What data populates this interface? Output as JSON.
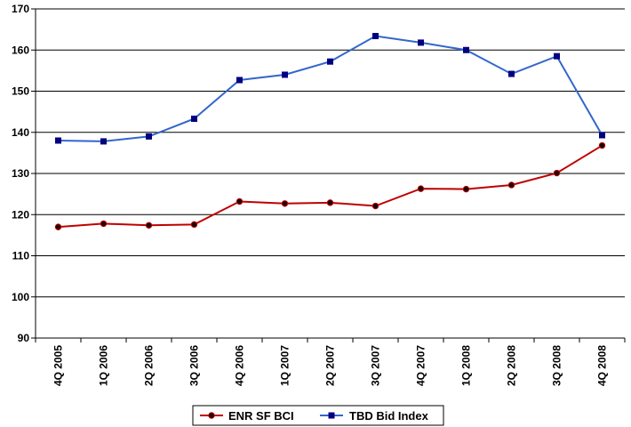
{
  "chart_data": {
    "type": "line",
    "categories": [
      "4Q 2005",
      "1Q 2006",
      "2Q 2006",
      "3Q 2006",
      "4Q 2006",
      "1Q 2007",
      "2Q 2007",
      "3Q 2007",
      "4Q 2007",
      "1Q 2008",
      "2Q 2008",
      "3Q 2008",
      "4Q 2008"
    ],
    "series": [
      {
        "name": "ENR SF BCI",
        "color": "#c00000",
        "marker": "circle",
        "values": [
          117.0,
          117.8,
          117.4,
          117.6,
          123.2,
          122.7,
          122.9,
          122.1,
          126.3,
          126.2,
          127.2,
          130.1,
          136.8
        ]
      },
      {
        "name": "TBD Bid Index",
        "color": "#3366cc",
        "marker": "square",
        "values": [
          138.0,
          137.8,
          139.0,
          143.3,
          152.7,
          154.0,
          157.2,
          163.4,
          161.8,
          160.0,
          154.2,
          158.5,
          139.3
        ]
      }
    ],
    "yticks": [
      "90",
      "100",
      "110",
      "120",
      "130",
      "140",
      "150",
      "160",
      "170"
    ],
    "ylim": [
      90,
      170
    ],
    "grid": true,
    "legend_position": "bottom-center",
    "title": "",
    "xlabel": "",
    "ylabel": ""
  }
}
